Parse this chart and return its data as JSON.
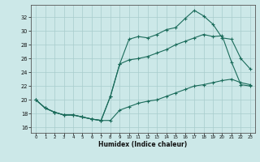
{
  "xlabel": "Humidex (Indice chaleur)",
  "bg_color": "#cce8e8",
  "line_color": "#1a6b5a",
  "grid_color": "#a8cccc",
  "xlim": [
    -0.5,
    23.5
  ],
  "ylim": [
    15.2,
    33.8
  ],
  "xticks": [
    0,
    1,
    2,
    3,
    4,
    5,
    6,
    7,
    8,
    9,
    10,
    11,
    12,
    13,
    14,
    15,
    16,
    17,
    18,
    19,
    20,
    21,
    22,
    23
  ],
  "yticks": [
    16,
    18,
    20,
    22,
    24,
    26,
    28,
    30,
    32
  ],
  "curve1_x": [
    0,
    1,
    2,
    3,
    4,
    5,
    6,
    7,
    8,
    9,
    10,
    11,
    12,
    13,
    14,
    15,
    16,
    17,
    18,
    19,
    20,
    21,
    22,
    23
  ],
  "curve1_y": [
    20.0,
    18.8,
    18.2,
    17.8,
    17.8,
    17.5,
    17.2,
    17.0,
    17.0,
    18.5,
    19.0,
    19.5,
    19.8,
    20.0,
    20.5,
    21.0,
    21.5,
    22.0,
    22.2,
    22.5,
    22.8,
    23.0,
    22.5,
    22.2
  ],
  "curve2_x": [
    0,
    1,
    2,
    3,
    4,
    5,
    6,
    7,
    8,
    9,
    10,
    11,
    12,
    13,
    14,
    15,
    16,
    17,
    18,
    19,
    20,
    21,
    22,
    23
  ],
  "curve2_y": [
    20.0,
    18.8,
    18.2,
    17.8,
    17.8,
    17.5,
    17.2,
    17.0,
    20.5,
    25.2,
    28.8,
    29.2,
    29.0,
    29.5,
    30.2,
    30.5,
    31.8,
    33.0,
    32.2,
    31.0,
    29.0,
    28.8,
    26.0,
    24.5
  ],
  "curve3_x": [
    0,
    1,
    2,
    3,
    4,
    5,
    6,
    7,
    8,
    9,
    10,
    11,
    12,
    13,
    14,
    15,
    16,
    17,
    18,
    19,
    20,
    21,
    22,
    23
  ],
  "curve3_y": [
    20.0,
    18.8,
    18.2,
    17.8,
    17.8,
    17.5,
    17.2,
    17.0,
    20.5,
    25.2,
    25.8,
    26.0,
    26.3,
    26.8,
    27.3,
    28.0,
    28.5,
    29.0,
    29.5,
    29.2,
    29.3,
    25.5,
    22.2,
    22.0
  ]
}
